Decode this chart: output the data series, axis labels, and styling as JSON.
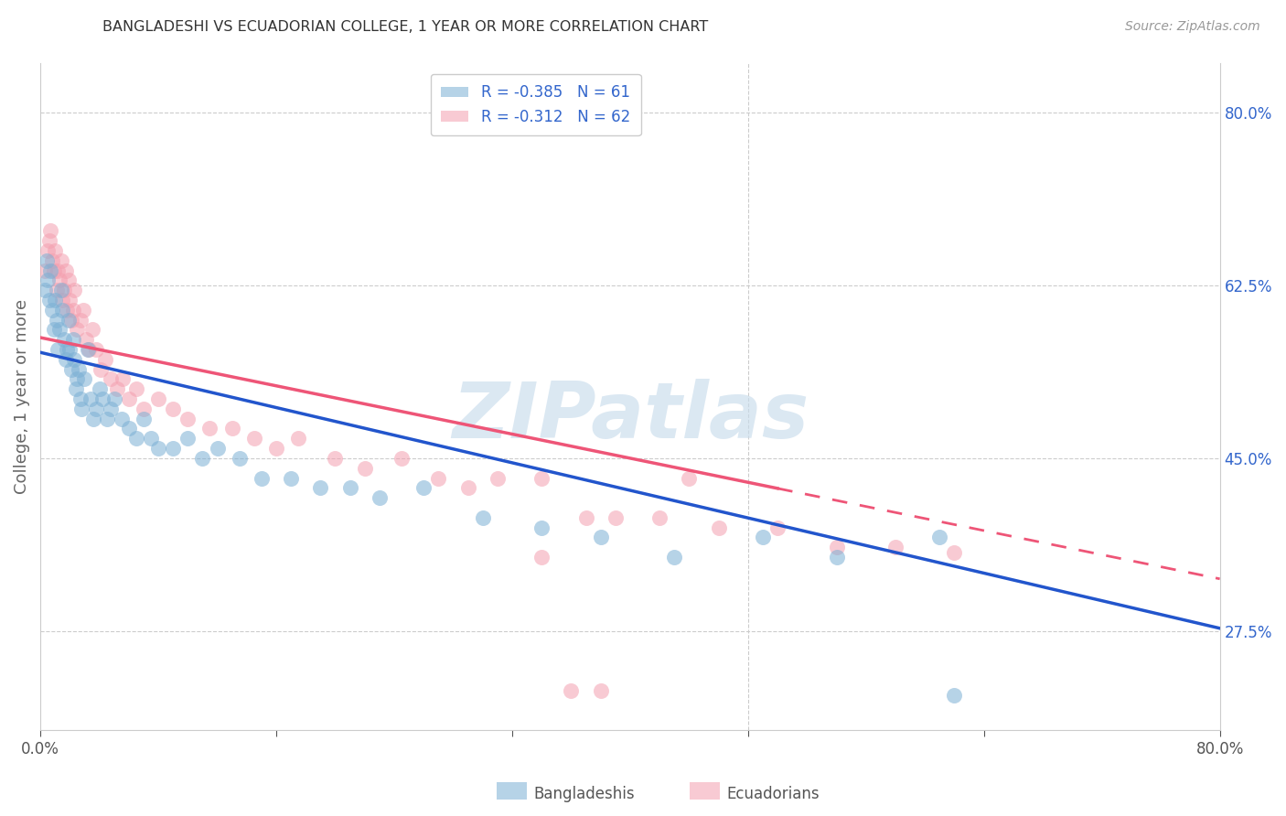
{
  "title": "BANGLADESHI VS ECUADORIAN COLLEGE, 1 YEAR OR MORE CORRELATION CHART",
  "source": "Source: ZipAtlas.com",
  "ylabel": "College, 1 year or more",
  "xlim": [
    0.0,
    0.8
  ],
  "ylim": [
    0.175,
    0.85
  ],
  "y_ticks_right": [
    0.8,
    0.625,
    0.45,
    0.275
  ],
  "y_tick_labels_right": [
    "80.0%",
    "62.5%",
    "45.0%",
    "27.5%"
  ],
  "x_ticks": [
    0.0,
    0.16,
    0.32,
    0.48,
    0.64,
    0.8
  ],
  "x_tick_labels": [
    "0.0%",
    "",
    "",
    "",
    "",
    "80.0%"
  ],
  "bangladeshi_color": "#7bafd4",
  "ecuadorian_color": "#f4a0b0",
  "regression_blue_color": "#2255cc",
  "regression_pink_color": "#ee5577",
  "watermark_color": "#c8dcec",
  "R_bangladeshi": -0.385,
  "N_bangladeshi": 61,
  "R_ecuadorian": -0.312,
  "N_ecuadorian": 62,
  "grid_color": "#cccccc",
  "title_color": "#333333",
  "axis_label_color": "#666666",
  "tick_color": "#555555",
  "right_tick_color": "#3366cc",
  "bang_x": [
    0.003,
    0.004,
    0.005,
    0.006,
    0.007,
    0.008,
    0.009,
    0.01,
    0.011,
    0.012,
    0.013,
    0.014,
    0.015,
    0.016,
    0.017,
    0.018,
    0.019,
    0.02,
    0.021,
    0.022,
    0.023,
    0.024,
    0.025,
    0.026,
    0.027,
    0.028,
    0.03,
    0.032,
    0.034,
    0.036,
    0.038,
    0.04,
    0.042,
    0.045,
    0.048,
    0.05,
    0.055,
    0.06,
    0.065,
    0.07,
    0.075,
    0.08,
    0.09,
    0.1,
    0.11,
    0.12,
    0.135,
    0.15,
    0.17,
    0.19,
    0.21,
    0.23,
    0.26,
    0.3,
    0.34,
    0.38,
    0.43,
    0.49,
    0.54,
    0.61,
    0.62
  ],
  "bang_y": [
    0.62,
    0.65,
    0.63,
    0.61,
    0.64,
    0.6,
    0.58,
    0.61,
    0.59,
    0.56,
    0.58,
    0.62,
    0.6,
    0.57,
    0.55,
    0.56,
    0.59,
    0.56,
    0.54,
    0.57,
    0.55,
    0.52,
    0.53,
    0.54,
    0.51,
    0.5,
    0.53,
    0.56,
    0.51,
    0.49,
    0.5,
    0.52,
    0.51,
    0.49,
    0.5,
    0.51,
    0.49,
    0.48,
    0.47,
    0.49,
    0.47,
    0.46,
    0.46,
    0.47,
    0.45,
    0.46,
    0.45,
    0.43,
    0.43,
    0.42,
    0.42,
    0.41,
    0.42,
    0.39,
    0.38,
    0.37,
    0.35,
    0.37,
    0.35,
    0.37,
    0.21
  ],
  "ecua_x": [
    0.003,
    0.005,
    0.006,
    0.007,
    0.008,
    0.009,
    0.01,
    0.011,
    0.012,
    0.013,
    0.014,
    0.015,
    0.016,
    0.017,
    0.018,
    0.019,
    0.02,
    0.021,
    0.022,
    0.023,
    0.025,
    0.027,
    0.029,
    0.031,
    0.033,
    0.035,
    0.038,
    0.041,
    0.044,
    0.048,
    0.052,
    0.056,
    0.06,
    0.065,
    0.07,
    0.08,
    0.09,
    0.1,
    0.115,
    0.13,
    0.145,
    0.16,
    0.175,
    0.2,
    0.22,
    0.245,
    0.27,
    0.29,
    0.31,
    0.34,
    0.37,
    0.39,
    0.42,
    0.46,
    0.5,
    0.54,
    0.58,
    0.62,
    0.34,
    0.44,
    0.36,
    0.38
  ],
  "ecua_y": [
    0.64,
    0.66,
    0.67,
    0.68,
    0.65,
    0.64,
    0.66,
    0.62,
    0.64,
    0.63,
    0.65,
    0.61,
    0.62,
    0.64,
    0.6,
    0.63,
    0.61,
    0.59,
    0.6,
    0.62,
    0.58,
    0.59,
    0.6,
    0.57,
    0.56,
    0.58,
    0.56,
    0.54,
    0.55,
    0.53,
    0.52,
    0.53,
    0.51,
    0.52,
    0.5,
    0.51,
    0.5,
    0.49,
    0.48,
    0.48,
    0.47,
    0.46,
    0.47,
    0.45,
    0.44,
    0.45,
    0.43,
    0.42,
    0.43,
    0.43,
    0.39,
    0.39,
    0.39,
    0.38,
    0.38,
    0.36,
    0.36,
    0.355,
    0.35,
    0.43,
    0.215,
    0.215
  ]
}
